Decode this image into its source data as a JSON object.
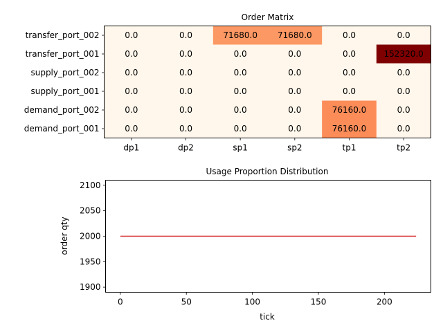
{
  "chart_data": [
    {
      "type": "heatmap",
      "title": "Order Matrix",
      "x_categories": [
        "dp1",
        "dp2",
        "sp1",
        "sp2",
        "tp1",
        "tp2"
      ],
      "y_categories": [
        "transfer_port_002",
        "transfer_port_001",
        "supply_port_002",
        "supply_port_001",
        "demand_port_002",
        "demand_port_001"
      ],
      "values": [
        [
          0.0,
          0.0,
          71680.0,
          71680.0,
          0.0,
          0.0
        ],
        [
          0.0,
          0.0,
          0.0,
          0.0,
          0.0,
          152320.0
        ],
        [
          0.0,
          0.0,
          0.0,
          0.0,
          0.0,
          0.0
        ],
        [
          0.0,
          0.0,
          0.0,
          0.0,
          0.0,
          0.0
        ],
        [
          0.0,
          0.0,
          0.0,
          0.0,
          76160.0,
          0.0
        ],
        [
          0.0,
          0.0,
          0.0,
          0.0,
          76160.0,
          0.0
        ]
      ],
      "colormap": "OrRd"
    },
    {
      "type": "line",
      "title": "Usage Proportion Distribution",
      "xlabel": "tick",
      "ylabel": "order qty",
      "xlim": [
        -11.2,
        235.2
      ],
      "ylim": [
        1890,
        2110
      ],
      "xticks": [
        0,
        50,
        100,
        150,
        200
      ],
      "yticks": [
        1900,
        1950,
        2000,
        2050,
        2100
      ],
      "grid": false,
      "series": [
        {
          "color": "#d62728",
          "x": [
            0,
            224
          ],
          "y": [
            2000,
            2000
          ]
        }
      ]
    }
  ]
}
